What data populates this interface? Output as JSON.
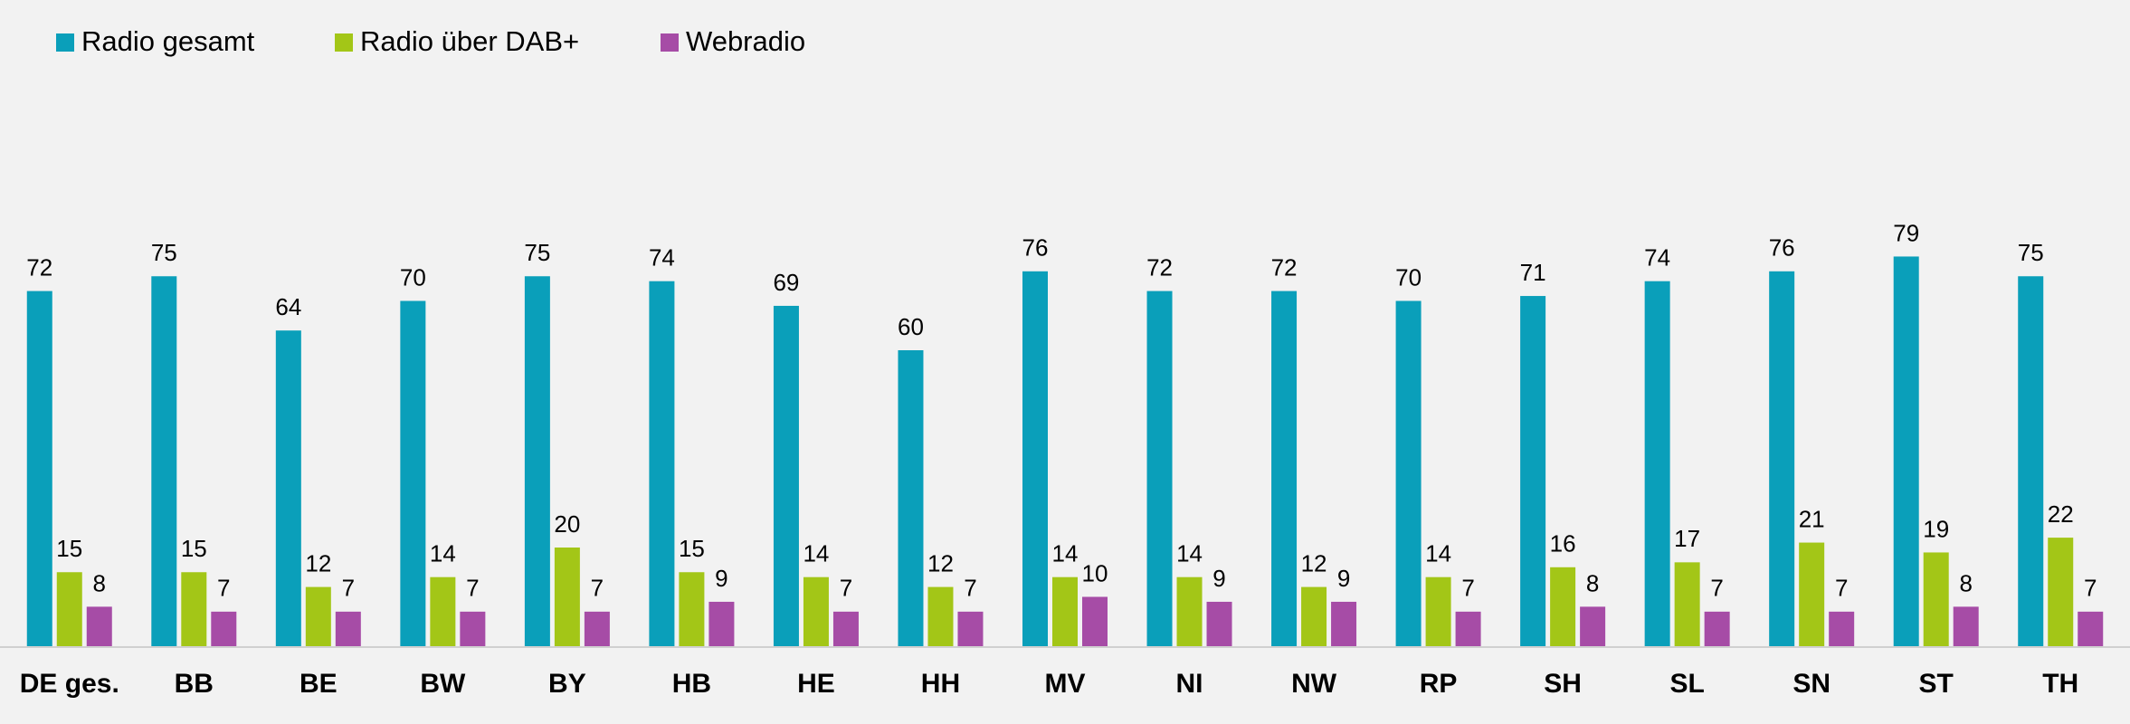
{
  "chart_data": {
    "type": "bar",
    "categories": [
      "DE ges.",
      "BB",
      "BE",
      "BW",
      "BY",
      "HB",
      "HE",
      "HH",
      "MV",
      "NI",
      "NW",
      "RP",
      "SH",
      "SL",
      "SN",
      "ST",
      "TH"
    ],
    "series": [
      {
        "name": "Radio gesamt",
        "color": "#0a9fba",
        "values": [
          72,
          75,
          64,
          70,
          75,
          74,
          69,
          60,
          76,
          72,
          72,
          70,
          71,
          74,
          76,
          79,
          75
        ]
      },
      {
        "name": "Radio über DAB+",
        "color": "#a3c617",
        "values": [
          15,
          15,
          12,
          14,
          20,
          15,
          14,
          12,
          14,
          14,
          12,
          14,
          16,
          17,
          21,
          19,
          22
        ]
      },
      {
        "name": "Webradio",
        "color": "#a64ca6",
        "values": [
          8,
          7,
          7,
          7,
          7,
          9,
          7,
          7,
          10,
          9,
          9,
          7,
          8,
          7,
          7,
          8,
          7
        ]
      }
    ],
    "ylim": [
      0,
      100
    ],
    "legend": "top-left"
  }
}
